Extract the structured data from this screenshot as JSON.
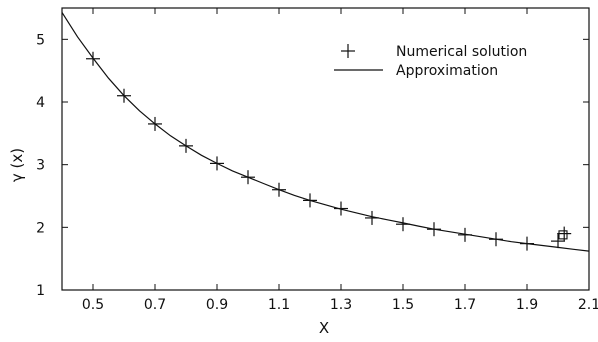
{
  "chart_data": {
    "type": "scatter",
    "title": "",
    "xlabel": "X",
    "ylabel": "γ (x)",
    "xlim": [
      0.4,
      2.1
    ],
    "ylim": [
      1,
      5.5
    ],
    "grid": false,
    "legend_position": "top-right",
    "x_ticks": [
      0.5,
      0.7,
      0.9,
      1.1,
      1.3,
      1.5,
      1.7,
      1.9,
      2.1
    ],
    "x_tick_labels": [
      "0.5",
      "0.7",
      "0.9",
      "1.1",
      "1.3",
      "1.5",
      "1.7",
      "1.9",
      "2.1"
    ],
    "y_ticks": [
      1,
      2,
      3,
      4,
      5
    ],
    "y_tick_labels": [
      "1",
      "2",
      "3",
      "4",
      "5"
    ],
    "series": [
      {
        "name": "Numerical solution",
        "kind": "points",
        "marker": "plus",
        "color": "#111111",
        "x": [
          0.5,
          0.6,
          0.7,
          0.8,
          0.9,
          1.0,
          1.1,
          1.2,
          1.3,
          1.4,
          1.5,
          1.6,
          1.7,
          1.8,
          1.9,
          2.0,
          2.02
        ],
        "y": [
          4.69,
          4.1,
          3.65,
          3.3,
          3.02,
          2.8,
          2.6,
          2.43,
          2.3,
          2.15,
          2.05,
          1.97,
          1.88,
          1.81,
          1.74,
          1.78,
          1.9
        ]
      },
      {
        "name": "Approximation",
        "kind": "line",
        "color": "#111111",
        "x": [
          0.4,
          0.45,
          0.5,
          0.55,
          0.6,
          0.65,
          0.7,
          0.75,
          0.8,
          0.85,
          0.9,
          0.95,
          1.0,
          1.05,
          1.1,
          1.15,
          1.2,
          1.25,
          1.3,
          1.35,
          1.4,
          1.45,
          1.5,
          1.55,
          1.6,
          1.65,
          1.7,
          1.75,
          1.8,
          1.85,
          1.9,
          1.95,
          2.0,
          2.05,
          2.1
        ],
        "y": [
          5.43,
          5.04,
          4.7,
          4.38,
          4.1,
          3.86,
          3.65,
          3.46,
          3.3,
          3.15,
          3.02,
          2.9,
          2.8,
          2.7,
          2.6,
          2.51,
          2.43,
          2.36,
          2.29,
          2.23,
          2.17,
          2.12,
          2.07,
          2.02,
          1.97,
          1.93,
          1.89,
          1.85,
          1.81,
          1.77,
          1.74,
          1.71,
          1.68,
          1.65,
          1.62
        ]
      }
    ]
  },
  "box_marker": {
    "marker": "square",
    "x": 2.0,
    "y": 1.8
  }
}
